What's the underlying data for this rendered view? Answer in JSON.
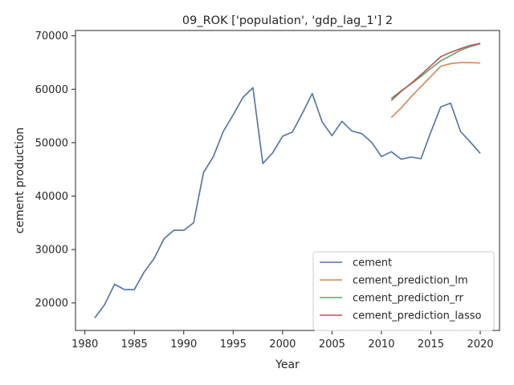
{
  "chart_data": {
    "type": "line",
    "title": "09_ROK ['population', 'gdp_lag_1'] 2",
    "xlabel": "Year",
    "ylabel": "cement production",
    "xlim": [
      1979.05,
      2021.95
    ],
    "ylim": [
      14850,
      71000
    ],
    "xticks": [
      1980,
      1985,
      1990,
      1995,
      2000,
      2005,
      2010,
      2015,
      2020
    ],
    "yticks": [
      20000,
      30000,
      40000,
      50000,
      60000,
      70000
    ],
    "ytick_labels": [
      "20000",
      "30000",
      "40000",
      "50000",
      "60000",
      "70000"
    ],
    "grid": false,
    "legend_position": "lower-right",
    "series": [
      {
        "name": "cement",
        "color": "#4c72b0",
        "x": [
          1981,
          1982,
          1983,
          1984,
          1985,
          1986,
          1987,
          1988,
          1989,
          1990,
          1991,
          1992,
          1993,
          1994,
          1995,
          1996,
          1997,
          1998,
          1999,
          2000,
          2001,
          2002,
          2003,
          2004,
          2005,
          2006,
          2007,
          2008,
          2009,
          2010,
          2011,
          2012,
          2013,
          2014,
          2015,
          2016,
          2017,
          2018,
          2019,
          2020
        ],
        "y": [
          17200,
          19700,
          23500,
          22500,
          22500,
          25800,
          28300,
          32000,
          33600,
          33600,
          35000,
          44400,
          47400,
          52100,
          55200,
          58500,
          60300,
          46100,
          48100,
          51200,
          52000,
          55500,
          59200,
          53900,
          51300,
          54000,
          52200,
          51700,
          50100,
          47400,
          48300,
          46900,
          47300,
          47000,
          52000,
          56700,
          57400,
          52100,
          50100,
          48000
        ]
      },
      {
        "name": "cement_prediction_lm",
        "color": "#dd8452",
        "x": [
          2011,
          2012,
          2013,
          2014,
          2015,
          2016,
          2017,
          2018,
          2019,
          2020
        ],
        "y": [
          54700,
          56500,
          58600,
          60500,
          62400,
          64300,
          64800,
          65000,
          65000,
          64900
        ]
      },
      {
        "name": "cement_prediction_rr",
        "color": "#55a868",
        "x": [
          2011,
          2012,
          2013,
          2014,
          2015,
          2016,
          2017,
          2018,
          2019,
          2020
        ],
        "y": [
          58300,
          59700,
          61000,
          62400,
          63900,
          65300,
          66300,
          67300,
          68000,
          68500
        ]
      },
      {
        "name": "cement_prediction_lasso",
        "color": "#c44e52",
        "x": [
          2011,
          2012,
          2013,
          2014,
          2015,
          2016,
          2017,
          2018,
          2019,
          2020
        ],
        "y": [
          57900,
          59600,
          61100,
          62700,
          64400,
          66100,
          66900,
          67600,
          68200,
          68600
        ]
      }
    ]
  }
}
